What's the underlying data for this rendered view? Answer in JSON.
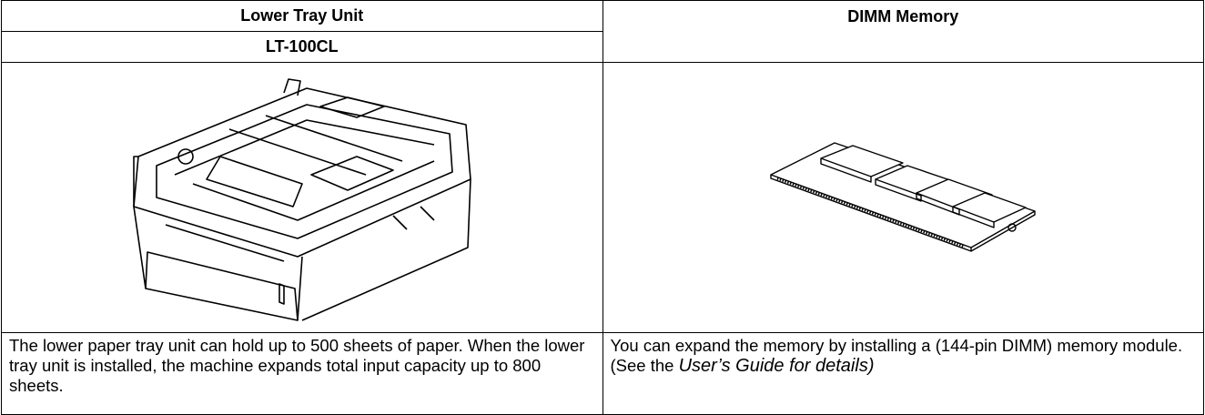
{
  "table": {
    "columns": [
      {
        "title": "Lower Tray Unit",
        "model": "LT-100CL",
        "description": "The lower paper tray unit can hold up to 500 sheets of paper. When the lower tray unit is installed, the machine expands total input capacity up to 800 sheets."
      },
      {
        "title": "DIMM Memory",
        "description": "You can expand the memory by installing a (144-pin DIMM) memory module. (See the ",
        "description_italic": "User’s Guide for details)"
      }
    ]
  }
}
